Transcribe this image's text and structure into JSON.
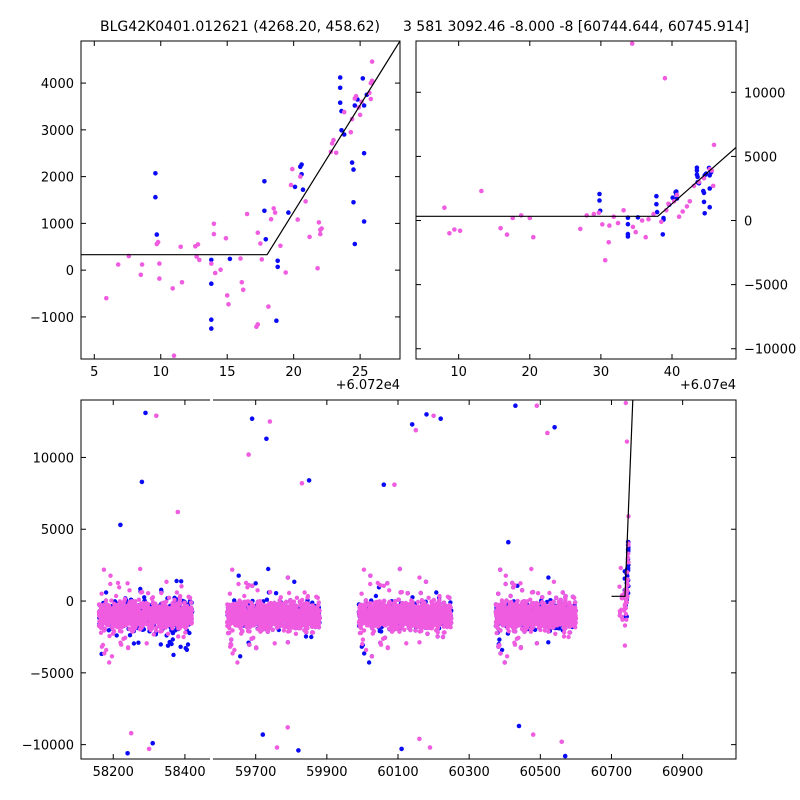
{
  "figure": {
    "left_title": "BLG42K0401.012621 (4268.20, 458.62)",
    "right_title": "3 581 3092.46 -8.000 -8 [60744.644, 60745.914]"
  },
  "colors": {
    "series_a": "#0a0af5",
    "series_b": "#f05ce0",
    "model": "#000000"
  },
  "chart_data": [
    {
      "type": "scatter",
      "panel": "zoom-left",
      "title": "BLG42K0401.012621 (4268.20, 458.62)",
      "x_offset_label": "+6.072e4",
      "xlim": [
        4,
        28
      ],
      "ylim": [
        -1900,
        4900
      ],
      "x_ticks": [
        5,
        10,
        15,
        20,
        25
      ],
      "y_ticks": [
        -1000,
        0,
        1000,
        2000,
        3000,
        4000
      ],
      "model_line": [
        [
          4,
          330
        ],
        [
          18,
          330
        ],
        [
          28,
          4900
        ]
      ],
      "series": [
        {
          "color": "series_a",
          "points": [
            [
              9.6,
              2070
            ],
            [
              9.6,
              1560
            ],
            [
              9.7,
              760
            ],
            [
              13.8,
              220
            ],
            [
              13.8,
              -290
            ],
            [
              13.8,
              -1060
            ],
            [
              13.8,
              -1250
            ],
            [
              15.2,
              240
            ],
            [
              17.8,
              1900
            ],
            [
              17.8,
              1270
            ],
            [
              17.9,
              660
            ],
            [
              18.7,
              -1080
            ],
            [
              18.8,
              200
            ],
            [
              18.8,
              70
            ],
            [
              19.6,
              1230
            ],
            [
              20.1,
              1780
            ],
            [
              20.5,
              2210
            ],
            [
              20.6,
              2260
            ],
            [
              20.6,
              2050
            ],
            [
              20.7,
              1720
            ],
            [
              23.5,
              4120
            ],
            [
              23.5,
              3900
            ],
            [
              23.5,
              3580
            ],
            [
              23.6,
              3400
            ],
            [
              23.6,
              2990
            ],
            [
              23.8,
              2900
            ],
            [
              24.4,
              2300
            ],
            [
              24.5,
              2150
            ],
            [
              24.5,
              1450
            ],
            [
              24.6,
              560
            ],
            [
              24.6,
              3520
            ],
            [
              24.8,
              3650
            ],
            [
              25.2,
              4100
            ],
            [
              25.3,
              3520
            ],
            [
              25.3,
              2500
            ],
            [
              25.3,
              1040
            ],
            [
              25.5,
              3750
            ]
          ]
        },
        {
          "color": "series_b",
          "points": [
            [
              5.9,
              -600
            ],
            [
              6.8,
              120
            ],
            [
              7.6,
              300
            ],
            [
              8.5,
              -100
            ],
            [
              8.6,
              120
            ],
            [
              9.7,
              560
            ],
            [
              9.8,
              600
            ],
            [
              9.9,
              140
            ],
            [
              9.9,
              -180
            ],
            [
              10.9,
              -390
            ],
            [
              11.0,
              -1830
            ],
            [
              11.5,
              500
            ],
            [
              11.6,
              -260
            ],
            [
              12.6,
              510
            ],
            [
              12.7,
              290
            ],
            [
              12.8,
              550
            ],
            [
              12.9,
              220
            ],
            [
              13.8,
              140
            ],
            [
              14.0,
              770
            ],
            [
              14.0,
              990
            ],
            [
              14.1,
              -60
            ],
            [
              14.5,
              10
            ],
            [
              14.9,
              680
            ],
            [
              15.0,
              -540
            ],
            [
              15.1,
              -730
            ],
            [
              16.0,
              250
            ],
            [
              16.1,
              -260
            ],
            [
              16.2,
              -420
            ],
            [
              16.5,
              1200
            ],
            [
              17.2,
              -1210
            ],
            [
              17.3,
              -1160
            ],
            [
              17.3,
              800
            ],
            [
              17.5,
              570
            ],
            [
              17.6,
              230
            ],
            [
              18.1,
              -780
            ],
            [
              18.3,
              1090
            ],
            [
              18.5,
              1320
            ],
            [
              18.6,
              1230
            ],
            [
              19.0,
              520
            ],
            [
              19.4,
              -50
            ],
            [
              19.8,
              1820
            ],
            [
              19.9,
              2160
            ],
            [
              20.3,
              1080
            ],
            [
              20.5,
              2000
            ],
            [
              20.9,
              1470
            ],
            [
              21.2,
              710
            ],
            [
              21.8,
              40
            ],
            [
              21.9,
              1020
            ],
            [
              22.0,
              770
            ],
            [
              22.0,
              860
            ],
            [
              22.1,
              890
            ],
            [
              22.8,
              2530
            ],
            [
              22.9,
              2710
            ],
            [
              23.0,
              2780
            ],
            [
              23.2,
              2510
            ],
            [
              23.8,
              3380
            ],
            [
              24.3,
              2950
            ],
            [
              24.4,
              3230
            ],
            [
              24.6,
              3670
            ],
            [
              24.7,
              3720
            ],
            [
              24.9,
              3480
            ],
            [
              25.0,
              3320
            ],
            [
              25.1,
              3600
            ],
            [
              25.7,
              3790
            ],
            [
              25.8,
              4000
            ],
            [
              25.8,
              3660
            ],
            [
              25.9,
              4050
            ],
            [
              25.9,
              4460
            ]
          ]
        }
      ]
    },
    {
      "type": "scatter",
      "panel": "zoom-right",
      "title": "3 581 3092.46 -8.000 -8 [60744.644, 60745.914]",
      "x_offset_label": "+6.07e4",
      "xlim": [
        4,
        49
      ],
      "ylim": [
        -10800,
        14000
      ],
      "x_ticks": [
        10,
        20,
        30,
        40
      ],
      "y_ticks": [
        -10000,
        -5000,
        0,
        5000,
        10000
      ],
      "model_line": [
        [
          4,
          330
        ],
        [
          38,
          330
        ],
        [
          49,
          5700
        ]
      ],
      "series": [
        {
          "color": "series_a",
          "points": [
            [
              29.8,
              2070
            ],
            [
              29.8,
              1560
            ],
            [
              29.9,
              760
            ],
            [
              33.8,
              220
            ],
            [
              33.8,
              -290
            ],
            [
              33.8,
              -1060
            ],
            [
              33.8,
              -1250
            ],
            [
              35.2,
              240
            ],
            [
              37.8,
              1900
            ],
            [
              37.8,
              1270
            ],
            [
              37.9,
              660
            ],
            [
              38.7,
              -1080
            ],
            [
              38.8,
              200
            ],
            [
              38.8,
              70
            ],
            [
              39.6,
              1230
            ],
            [
              40.1,
              1780
            ],
            [
              40.5,
              2210
            ],
            [
              40.6,
              2260
            ],
            [
              40.6,
              2050
            ],
            [
              40.7,
              1720
            ],
            [
              43.5,
              4120
            ],
            [
              43.5,
              3900
            ],
            [
              43.5,
              3580
            ],
            [
              43.6,
              3400
            ],
            [
              43.6,
              2990
            ],
            [
              43.8,
              2900
            ],
            [
              44.4,
              2300
            ],
            [
              44.5,
              2150
            ],
            [
              44.5,
              1450
            ],
            [
              44.6,
              560
            ],
            [
              44.6,
              3520
            ],
            [
              44.8,
              3650
            ],
            [
              45.2,
              4100
            ],
            [
              45.3,
              3520
            ],
            [
              45.3,
              2500
            ],
            [
              45.3,
              1040
            ],
            [
              45.5,
              3750
            ]
          ]
        },
        {
          "color": "series_b",
          "points": [
            [
              8.0,
              1000
            ],
            [
              8.7,
              -1000
            ],
            [
              9.4,
              -700
            ],
            [
              10.2,
              -800
            ],
            [
              13.2,
              2300
            ],
            [
              15.9,
              -600
            ],
            [
              16.8,
              -1100
            ],
            [
              17.6,
              200
            ],
            [
              18.8,
              400
            ],
            [
              20.0,
              200
            ],
            [
              20.5,
              -1300
            ],
            [
              27.1,
              -650
            ],
            [
              28.0,
              400
            ],
            [
              29.0,
              500
            ],
            [
              29.7,
              600
            ],
            [
              30.2,
              -300
            ],
            [
              31.2,
              -400
            ],
            [
              30.6,
              -3100
            ],
            [
              31.1,
              -1700
            ],
            [
              31.8,
              300
            ],
            [
              32.4,
              -200
            ],
            [
              33.2,
              800
            ],
            [
              34.4,
              13800
            ],
            [
              34.5,
              -500
            ],
            [
              34.9,
              -900
            ],
            [
              35.8,
              0
            ],
            [
              36.3,
              -1300
            ],
            [
              36.7,
              100
            ],
            [
              37.4,
              500
            ],
            [
              38.5,
              -100
            ],
            [
              39.0,
              11100
            ],
            [
              39.2,
              800
            ],
            [
              39.5,
              1300
            ],
            [
              40.3,
              1500
            ],
            [
              40.7,
              2000
            ],
            [
              41.0,
              300
            ],
            [
              41.5,
              700
            ],
            [
              42.1,
              1100
            ],
            [
              42.5,
              1500
            ],
            [
              43.1,
              2700
            ],
            [
              43.8,
              3000
            ],
            [
              44.5,
              3300
            ],
            [
              45.3,
              4000
            ],
            [
              45.9,
              5900
            ],
            [
              45.6,
              3900
            ],
            [
              45.8,
              2700
            ]
          ]
        }
      ]
    },
    {
      "type": "scatter",
      "panel": "full-lightcurve",
      "ylim": [
        -11000,
        14000
      ],
      "y_ticks": [
        -10000,
        -5000,
        0,
        5000,
        10000
      ],
      "segments": [
        {
          "xlim": [
            58110,
            58470
          ],
          "x_ticks": [
            58200,
            58400
          ]
        },
        {
          "xlim": [
            59580,
            61050
          ],
          "x_ticks": [
            59700,
            59900,
            60100,
            60300,
            60500,
            60700,
            60900
          ]
        }
      ],
      "seasons": [
        {
          "segment": 0,
          "x_range": [
            58160,
            58420
          ],
          "count_a": 620,
          "count_b": 980,
          "outliers": [
            [
              58290,
              13100
            ],
            [
              58320,
              12900
            ],
            [
              58280,
              8300
            ],
            [
              58250,
              -9200
            ],
            [
              58310,
              -9900
            ],
            [
              58300,
              -10300
            ],
            [
              58240,
              -10600
            ],
            [
              58380,
              6200
            ],
            [
              58220,
              5300
            ]
          ]
        },
        {
          "segment": 1,
          "x_range": [
            59620,
            59880
          ],
          "count_a": 620,
          "count_b": 980,
          "outliers": [
            [
              59690,
              12700
            ],
            [
              59740,
              12500
            ],
            [
              59730,
              11300
            ],
            [
              59680,
              10200
            ],
            [
              59850,
              8400
            ],
            [
              59830,
              8200
            ],
            [
              59720,
              -9300
            ],
            [
              59760,
              -10200
            ],
            [
              59820,
              -10400
            ],
            [
              59790,
              -8800
            ]
          ]
        },
        {
          "segment": 1,
          "x_range": [
            59990,
            60250
          ],
          "count_a": 620,
          "count_b": 980,
          "outliers": [
            [
              60140,
              12300
            ],
            [
              60200,
              12900
            ],
            [
              60180,
              13000
            ],
            [
              60150,
              11900
            ],
            [
              60220,
              12700
            ],
            [
              60090,
              8100
            ],
            [
              60060,
              8100
            ],
            [
              60160,
              -9600
            ],
            [
              60110,
              -10300
            ],
            [
              60190,
              -10200
            ]
          ]
        },
        {
          "segment": 1,
          "x_range": [
            60375,
            60600
          ],
          "count_a": 620,
          "count_b": 980,
          "outliers": [
            [
              60430,
              13600
            ],
            [
              60490,
              13600
            ],
            [
              60540,
              12100
            ],
            [
              60520,
              11700
            ],
            [
              60410,
              4100
            ],
            [
              60560,
              -9800
            ],
            [
              60570,
              -10800
            ],
            [
              60480,
              -9300
            ],
            [
              60440,
              -8700
            ]
          ]
        }
      ],
      "flare": {
        "x_range": [
          60720,
          60750
        ]
      },
      "model_line": [
        [
          60700,
          330
        ],
        [
          60738,
          330
        ],
        [
          60760,
          14000
        ]
      ]
    }
  ]
}
